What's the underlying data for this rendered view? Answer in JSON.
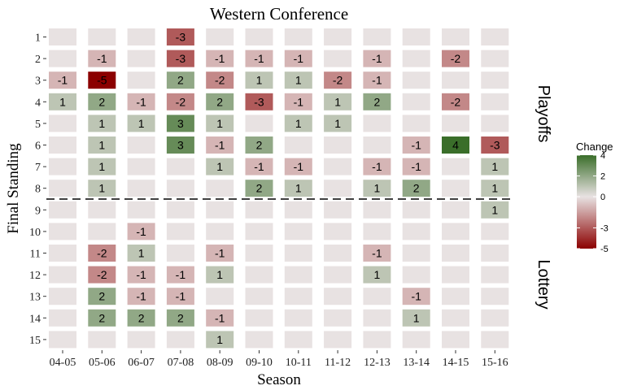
{
  "chart_data": {
    "type": "heatmap",
    "title": "Western Conference",
    "xlabel": "Season",
    "ylabel": "Final Standing",
    "x_categories": [
      "04-05",
      "05-06",
      "06-07",
      "07-08",
      "08-09",
      "09-10",
      "10-11",
      "11-12",
      "12-13",
      "13-14",
      "14-15",
      "15-16"
    ],
    "y_categories": [
      "1",
      "2",
      "3",
      "4",
      "5",
      "6",
      "7",
      "8",
      "9",
      "10",
      "11",
      "12",
      "13",
      "14",
      "15"
    ],
    "values": [
      [
        0,
        0,
        0,
        -3,
        0,
        0,
        0,
        0,
        0,
        0,
        0,
        0
      ],
      [
        0,
        -1,
        0,
        -3,
        -1,
        -1,
        -1,
        0,
        -1,
        0,
        -2,
        0
      ],
      [
        -1,
        -5,
        0,
        2,
        -2,
        1,
        1,
        -2,
        -1,
        0,
        0,
        0
      ],
      [
        1,
        2,
        -1,
        -2,
        2,
        -3,
        -1,
        1,
        2,
        0,
        -2,
        0
      ],
      [
        0,
        1,
        1,
        3,
        1,
        0,
        1,
        1,
        0,
        0,
        0,
        0
      ],
      [
        0,
        1,
        0,
        3,
        -1,
        2,
        0,
        0,
        0,
        -1,
        4,
        -3
      ],
      [
        0,
        1,
        0,
        0,
        1,
        -1,
        -1,
        0,
        -1,
        -1,
        0,
        1
      ],
      [
        0,
        1,
        0,
        0,
        0,
        2,
        1,
        0,
        1,
        2,
        0,
        1
      ],
      [
        0,
        0,
        0,
        0,
        0,
        0,
        0,
        0,
        0,
        0,
        0,
        1
      ],
      [
        0,
        0,
        -1,
        0,
        0,
        0,
        0,
        0,
        0,
        0,
        0,
        0
      ],
      [
        0,
        -2,
        1,
        0,
        -1,
        0,
        0,
        0,
        -1,
        0,
        0,
        0
      ],
      [
        0,
        -2,
        -1,
        -1,
        1,
        0,
        0,
        0,
        1,
        0,
        0,
        0
      ],
      [
        0,
        2,
        -1,
        -1,
        0,
        0,
        0,
        0,
        0,
        -1,
        0,
        0
      ],
      [
        0,
        2,
        2,
        2,
        -1,
        0,
        0,
        0,
        0,
        1,
        0,
        0
      ],
      [
        0,
        0,
        0,
        0,
        1,
        0,
        0,
        0,
        0,
        0,
        0,
        0
      ]
    ],
    "color_scale": {
      "low": "#8b0000",
      "mid": "#e8e2e2",
      "high": "#3a6e2a",
      "domain": [
        -5,
        0,
        4
      ]
    },
    "legend": {
      "title": "Change",
      "ticks": [
        4,
        2,
        0,
        -3,
        -5
      ],
      "placement": "right"
    },
    "facet_labels": [
      "Playoffs",
      "Lottery"
    ],
    "separator": "dashed line between 8 and 9",
    "grid": false
  }
}
